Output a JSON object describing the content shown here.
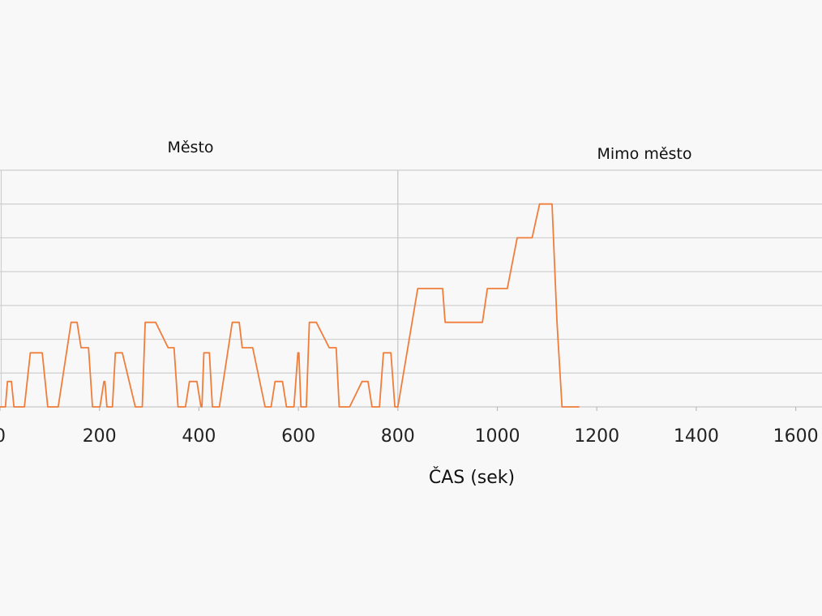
{
  "chart_data": {
    "type": "line",
    "title": "",
    "xlabel": "ČAS (sek)",
    "ylabel": "",
    "xlim": [
      0,
      1650
    ],
    "ylim": [
      0,
      140
    ],
    "xticks": [
      0,
      200,
      400,
      600,
      800,
      1000,
      1200,
      1400,
      1600
    ],
    "yticks_gridlines": [
      0,
      20,
      40,
      60,
      80,
      100,
      120,
      140
    ],
    "grid": true,
    "regions": [
      {
        "label": "Město",
        "x_start": 0,
        "x_end": 800
      },
      {
        "label": "Mimo město",
        "x_start": 800,
        "x_end": 1650
      }
    ],
    "series": [
      {
        "color": "#f07d3a",
        "x": [
          0,
          11,
          15,
          23,
          28,
          49,
          61,
          85,
          96,
          117,
          143,
          155,
          163,
          178,
          186,
          201,
          209,
          211,
          215,
          226,
          232,
          246,
          272,
          286,
          292,
          313,
          338,
          350,
          358,
          373,
          381,
          396,
          404,
          406,
          410,
          421,
          427,
          441,
          467,
          481,
          487,
          508,
          533,
          545,
          553,
          568,
          576,
          591,
          599,
          601,
          605,
          616,
          622,
          636,
          662,
          676,
          682,
          703,
          728,
          740,
          748,
          763,
          771,
          786,
          794,
          800,
          840,
          890,
          895,
          970,
          980,
          1020,
          1040,
          1070,
          1085,
          1110,
          1120,
          1130,
          1150,
          1160,
          1165
        ],
        "y": [
          0,
          0,
          15,
          15,
          0,
          0,
          32,
          32,
          0,
          0,
          50,
          50,
          35,
          35,
          0,
          0,
          15,
          15,
          0,
          0,
          32,
          32,
          0,
          0,
          50,
          50,
          35,
          35,
          0,
          0,
          15,
          15,
          0,
          0,
          32,
          32,
          0,
          0,
          50,
          50,
          35,
          35,
          0,
          0,
          15,
          15,
          0,
          0,
          32,
          32,
          0,
          0,
          50,
          50,
          35,
          35,
          0,
          0,
          15,
          15,
          0,
          0,
          32,
          32,
          0,
          0,
          70,
          70,
          50,
          50,
          70,
          70,
          100,
          100,
          120,
          120,
          50,
          0,
          0,
          0,
          0
        ]
      }
    ]
  }
}
